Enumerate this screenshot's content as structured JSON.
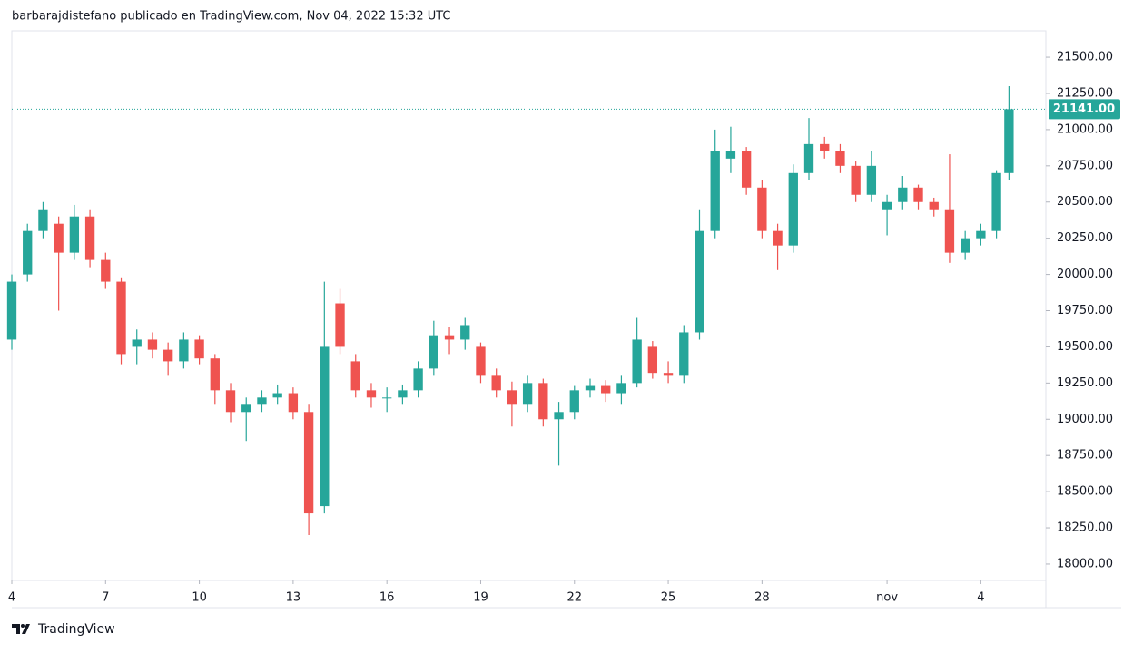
{
  "header": "barbarajdistefano publicado en TradingView.com, Nov 04, 2022 15:32 UTC",
  "footer": "TradingView",
  "chart_data": {
    "type": "candlestick",
    "up_color": "#26a69a",
    "down_color": "#ef5350",
    "xlim": [
      0,
      33.08
    ],
    "ylim": [
      17887,
      21682
    ],
    "xticks": [
      {
        "value": 0,
        "label": "4"
      },
      {
        "value": 3,
        "label": "7"
      },
      {
        "value": 6,
        "label": "10"
      },
      {
        "value": 9,
        "label": "13"
      },
      {
        "value": 12,
        "label": "16"
      },
      {
        "value": 15,
        "label": "19"
      },
      {
        "value": 18,
        "label": "22"
      },
      {
        "value": 21,
        "label": "25"
      },
      {
        "value": 24,
        "label": "28"
      },
      {
        "value": 28,
        "label": "nov"
      },
      {
        "value": 31,
        "label": "4"
      }
    ],
    "yticks": [
      {
        "value": 18000,
        "label": "18000.00"
      },
      {
        "value": 18250,
        "label": "18250.00"
      },
      {
        "value": 18500,
        "label": "18500.00"
      },
      {
        "value": 18750,
        "label": "18750.00"
      },
      {
        "value": 19000,
        "label": "19000.00"
      },
      {
        "value": 19250,
        "label": "19250.00"
      },
      {
        "value": 19500,
        "label": "19500.00"
      },
      {
        "value": 19750,
        "label": "19750.00"
      },
      {
        "value": 20000,
        "label": "20000.00"
      },
      {
        "value": 20250,
        "label": "20250.00"
      },
      {
        "value": 20500,
        "label": "20500.00"
      },
      {
        "value": 20750,
        "label": "20750.00"
      },
      {
        "value": 21000,
        "label": "21000.00"
      },
      {
        "value": 21250,
        "label": "21250.00"
      },
      {
        "value": 21500,
        "label": "21500.00"
      }
    ],
    "last_price": {
      "value": 21141,
      "label": "21141.00"
    },
    "x": [
      0,
      0.5,
      1,
      1.5,
      2,
      2.5,
      3,
      3.5,
      4,
      4.5,
      5,
      5.5,
      6,
      6.5,
      7,
      7.5,
      8,
      8.5,
      9,
      9.5,
      10,
      10.5,
      11,
      11.5,
      12,
      12.5,
      13,
      13.5,
      14,
      14.5,
      15,
      15.5,
      16,
      16.5,
      17,
      17.5,
      18,
      18.5,
      19,
      19.5,
      20,
      20.5,
      21,
      21.5,
      22,
      22.5,
      23,
      23.5,
      24,
      24.5,
      25,
      25.5,
      26,
      26.5,
      27,
      27.5,
      28,
      28.5,
      29,
      29.5,
      30,
      30.5,
      31,
      31.5,
      31.9
    ],
    "open": [
      19550,
      20000,
      20300,
      20350,
      20150,
      20400,
      20100,
      19950,
      19500,
      19550,
      19480,
      19400,
      19550,
      19420,
      19200,
      19050,
      19100,
      19150,
      19180,
      19050,
      18400,
      19800,
      19400,
      19200,
      19150,
      19150,
      19200,
      19350,
      19580,
      19550,
      19500,
      19300,
      19200,
      19100,
      19250,
      19000,
      19050,
      19200,
      19230,
      19180,
      19250,
      19500,
      19320,
      19300,
      19600,
      20300,
      20800,
      20850,
      20600,
      20300,
      20200,
      20700,
      20900,
      20850,
      20750,
      20550,
      20450,
      20500,
      20600,
      20500,
      20450,
      20150,
      20250,
      20300,
      20700
    ],
    "high": [
      20000,
      20350,
      20500,
      20400,
      20480,
      20450,
      20150,
      19980,
      19620,
      19600,
      19530,
      19600,
      19580,
      19450,
      19250,
      19150,
      19200,
      19240,
      19220,
      19100,
      19950,
      19900,
      19450,
      19250,
      19220,
      19240,
      19400,
      19680,
      19640,
      19700,
      19530,
      19350,
      19260,
      19300,
      19280,
      19120,
      19230,
      19280,
      19270,
      19300,
      19700,
      19540,
      19400,
      19650,
      20450,
      21000,
      21020,
      20880,
      20650,
      20350,
      20760,
      21080,
      20950,
      20900,
      20780,
      20850,
      20550,
      20680,
      20620,
      20530,
      20830,
      20300,
      20350,
      20720,
      21300
    ],
    "low": [
      19480,
      19950,
      20250,
      19750,
      20100,
      20050,
      19900,
      19380,
      19380,
      19420,
      19300,
      19350,
      19380,
      19100,
      18980,
      18850,
      19050,
      19100,
      19000,
      18200,
      18350,
      19450,
      19150,
      19080,
      19050,
      19100,
      19150,
      19300,
      19450,
      19480,
      19250,
      19150,
      18950,
      19050,
      18950,
      18680,
      19000,
      19150,
      19120,
      19100,
      19220,
      19280,
      19250,
      19250,
      19550,
      20250,
      20700,
      20550,
      20250,
      20030,
      20150,
      20650,
      20800,
      20700,
      20500,
      20500,
      20270,
      20450,
      20450,
      20400,
      20080,
      20100,
      20200,
      20250,
      20650
    ],
    "close": [
      19950,
      20300,
      20450,
      20150,
      20400,
      20100,
      19950,
      19450,
      19550,
      19480,
      19400,
      19550,
      19420,
      19200,
      19050,
      19100,
      19150,
      19180,
      19050,
      18350,
      19500,
      19500,
      19200,
      19150,
      19150,
      19200,
      19350,
      19580,
      19550,
      19650,
      19300,
      19200,
      19100,
      19250,
      19000,
      19050,
      19200,
      19230,
      19180,
      19250,
      19550,
      19320,
      19300,
      19600,
      20300,
      20850,
      20850,
      20600,
      20300,
      20200,
      20700,
      20900,
      20850,
      20750,
      20550,
      20750,
      20500,
      20600,
      20500,
      20450,
      20150,
      20250,
      20300,
      20700,
      21141
    ]
  }
}
